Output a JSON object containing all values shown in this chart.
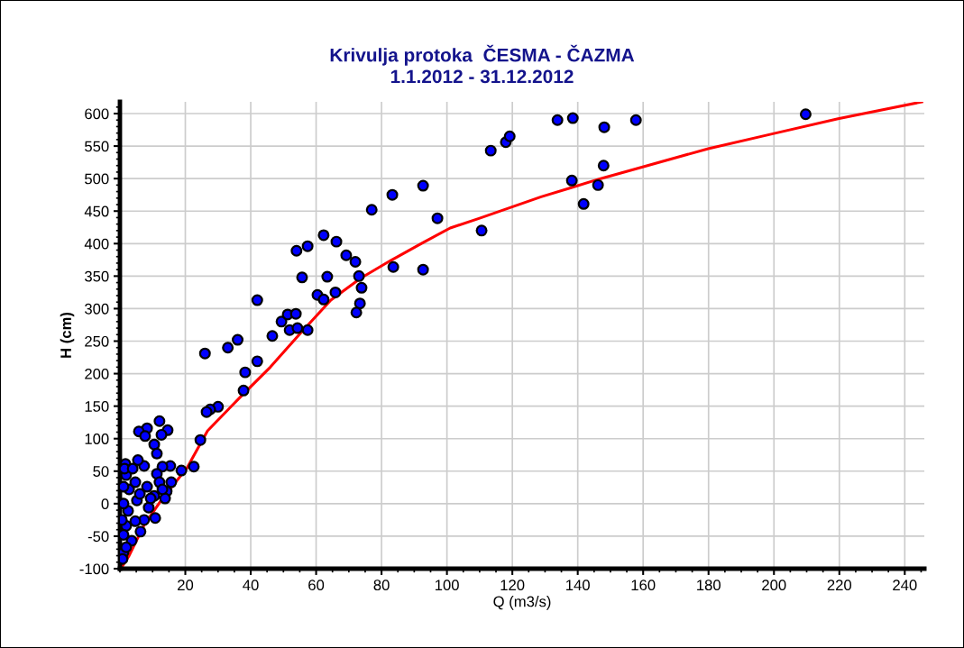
{
  "chart_data": {
    "type": "scatter",
    "title": "Krivulja protoka  ČESMA - ČAZMA",
    "subtitle": "1.1.2012 - 31.12.2012",
    "xlabel": "Q (m3/s)",
    "ylabel": "H (cm)",
    "xlim": [
      0,
      246
    ],
    "xticks": [
      20,
      40,
      60,
      80,
      100,
      120,
      140,
      160,
      180,
      200,
      220,
      240
    ],
    "ylim": [
      -100,
      618
    ],
    "yticks": [
      -100,
      -50,
      0,
      50,
      100,
      150,
      200,
      250,
      300,
      350,
      400,
      450,
      500,
      550,
      600
    ],
    "grid": true,
    "marker": "circle",
    "legend": false,
    "series": [
      {
        "color": "#0000ff",
        "x": [
          209.7,
          133.8,
          138.5,
          148.1,
          157.8,
          113.4,
          118,
          119.2,
          77,
          83.3,
          92.7,
          97.1,
          110.6,
          83.6,
          92.7,
          138.2,
          147.9,
          146.2,
          141.8,
          26,
          33,
          36,
          42,
          46.6,
          49.4,
          51.3,
          53.8,
          51.9,
          54.3,
          57.4,
          42,
          38.3,
          37.8,
          30,
          27.6,
          26.5,
          54,
          57.4,
          62.3,
          66.2,
          69.2,
          72,
          55.7,
          63.4,
          73.1,
          73.9,
          60.4,
          62.3,
          65.9,
          73.4,
          72.3,
          12.1,
          8.3,
          5.8,
          7.7,
          14.6,
          12.7,
          10.5,
          11.3,
          7.4,
          5.5,
          1.7,
          15.4,
          18.8,
          22.6,
          24.6,
          13,
          11.3,
          15.7,
          12.1,
          14.3,
          13.8,
          10.5,
          8.8,
          10.8,
          7.4,
          4.7,
          6.3,
          3.6,
          1.9,
          2.5,
          5.2,
          2.8,
          4.7,
          1.9,
          1.4,
          3.9,
          6.1,
          8.3,
          1.1,
          1.1,
          1.1,
          0.8,
          1.9,
          1.1,
          0.6,
          9.4,
          13
        ],
        "values": [
          599,
          590,
          593,
          579,
          590,
          543,
          556,
          565,
          452,
          475,
          489,
          439,
          420,
          364,
          360,
          497,
          520,
          490,
          461,
          231,
          240,
          252,
          313,
          258,
          280,
          291,
          292,
          267,
          270,
          267,
          219,
          202,
          174,
          149,
          145,
          141,
          389,
          396,
          413,
          403,
          382,
          372,
          348,
          349,
          350,
          332,
          321,
          314,
          325,
          308,
          294,
          127,
          116,
          111,
          104,
          113,
          106,
          91,
          77,
          58,
          67,
          61,
          58,
          51,
          57,
          98,
          57,
          46,
          33,
          33,
          19,
          8,
          12,
          -6,
          -22,
          -25,
          -27,
          -43,
          -57,
          -34,
          -11,
          5,
          22,
          33,
          44,
          54,
          54,
          15,
          26,
          0,
          -48,
          -75,
          -85,
          -67,
          26,
          -25,
          8,
          22
        ]
      },
      {
        "type": "line",
        "color": "#ff0000",
        "marker": "none",
        "line_style": "solid",
        "x": [
          0.5,
          2.8,
          7.4,
          13,
          20.4,
          26.8,
          37,
          46,
          55.2,
          64.5,
          73.7,
          82.8,
          92.1,
          101,
          110,
          119.7,
          128.8,
          138,
          147,
          156.4,
          179.9,
          199.7,
          219.6,
          245.2
        ],
        "values": [
          -98,
          -80,
          -33,
          8,
          54,
          112,
          165,
          210,
          262,
          313,
          347,
          374,
          400,
          424,
          439,
          456,
          472,
          486,
          500,
          513,
          546,
          569,
          592,
          618
        ]
      }
    ]
  }
}
